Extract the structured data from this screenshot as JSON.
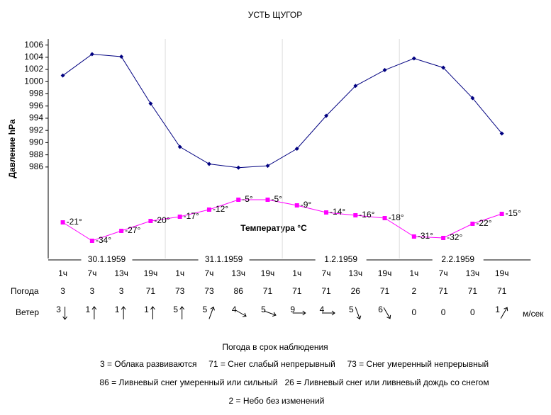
{
  "chart_data": {
    "type": "line",
    "title": "УСТЬ ЩУГОР",
    "y_label": "Давление hPa",
    "y2_label": "Температура °C",
    "categories": [
      "1ч",
      "7ч",
      "13ч",
      "19ч",
      "1ч",
      "7ч",
      "13ч",
      "19ч",
      "1ч",
      "7ч",
      "13ч",
      "19ч",
      "1ч",
      "7ч",
      "13ч",
      "19ч"
    ],
    "dates": [
      "30.1.1959",
      "31.1.1959",
      "1.2.1959",
      "2.2.1959"
    ],
    "ylim": [
      971,
      1007
    ],
    "yticks": [
      986,
      988,
      990,
      992,
      994,
      996,
      998,
      1000,
      1002,
      1004,
      1006
    ],
    "y2lim": [
      -46.5,
      108.5
    ],
    "series": [
      {
        "color": "#000080",
        "values": [
          1001,
          1004.5,
          1004.1,
          996.4,
          989.3,
          986.5,
          985.9,
          986.2,
          989,
          994.4,
          999.3,
          1001.9,
          1003.8,
          1002.3,
          997.3,
          991.5
        ]
      },
      {
        "color": "#ff00ff",
        "axis": "y2",
        "values": [
          -21,
          -34,
          -27,
          -20,
          -17,
          -12,
          -5,
          -5,
          -9,
          -14,
          -16,
          -18,
          -31,
          -32,
          -22,
          -15
        ],
        "value_labels": [
          "-21°",
          "-34°",
          "-27°",
          "-20°",
          "-17°",
          "-12°",
          "-5°",
          "-5°",
          "-9°",
          "-14°",
          "-16°",
          "-18°",
          "-31°",
          "-32°",
          "-22°",
          "-15°"
        ]
      }
    ],
    "weather": {
      "label": "Погода",
      "codes": [
        3,
        3,
        3,
        71,
        73,
        73,
        86,
        71,
        71,
        71,
        26,
        71,
        2,
        71,
        71,
        71
      ]
    },
    "wind": {
      "label": "Ветер",
      "unit": "м/сек",
      "speed": [
        3,
        1,
        1,
        1,
        5,
        5,
        4,
        5,
        9,
        4,
        5,
        6,
        0,
        0,
        0,
        1
      ],
      "direction": [
        180,
        0,
        0,
        0,
        0,
        20,
        120,
        110,
        90,
        90,
        160,
        150,
        null,
        null,
        null,
        30
      ]
    },
    "legend": {
      "title": "Погода в срок наблюдения",
      "lines": [
        "3 = Облака развиваются     71 = Снег слабый непрерывный     73 = Снег умеренный непрерывный",
        "86 = Ливневый снег умеренный или сильный   26 = Ливневый снег или ливневый дождь со снегом",
        "2 = Небо без изменений"
      ]
    }
  }
}
